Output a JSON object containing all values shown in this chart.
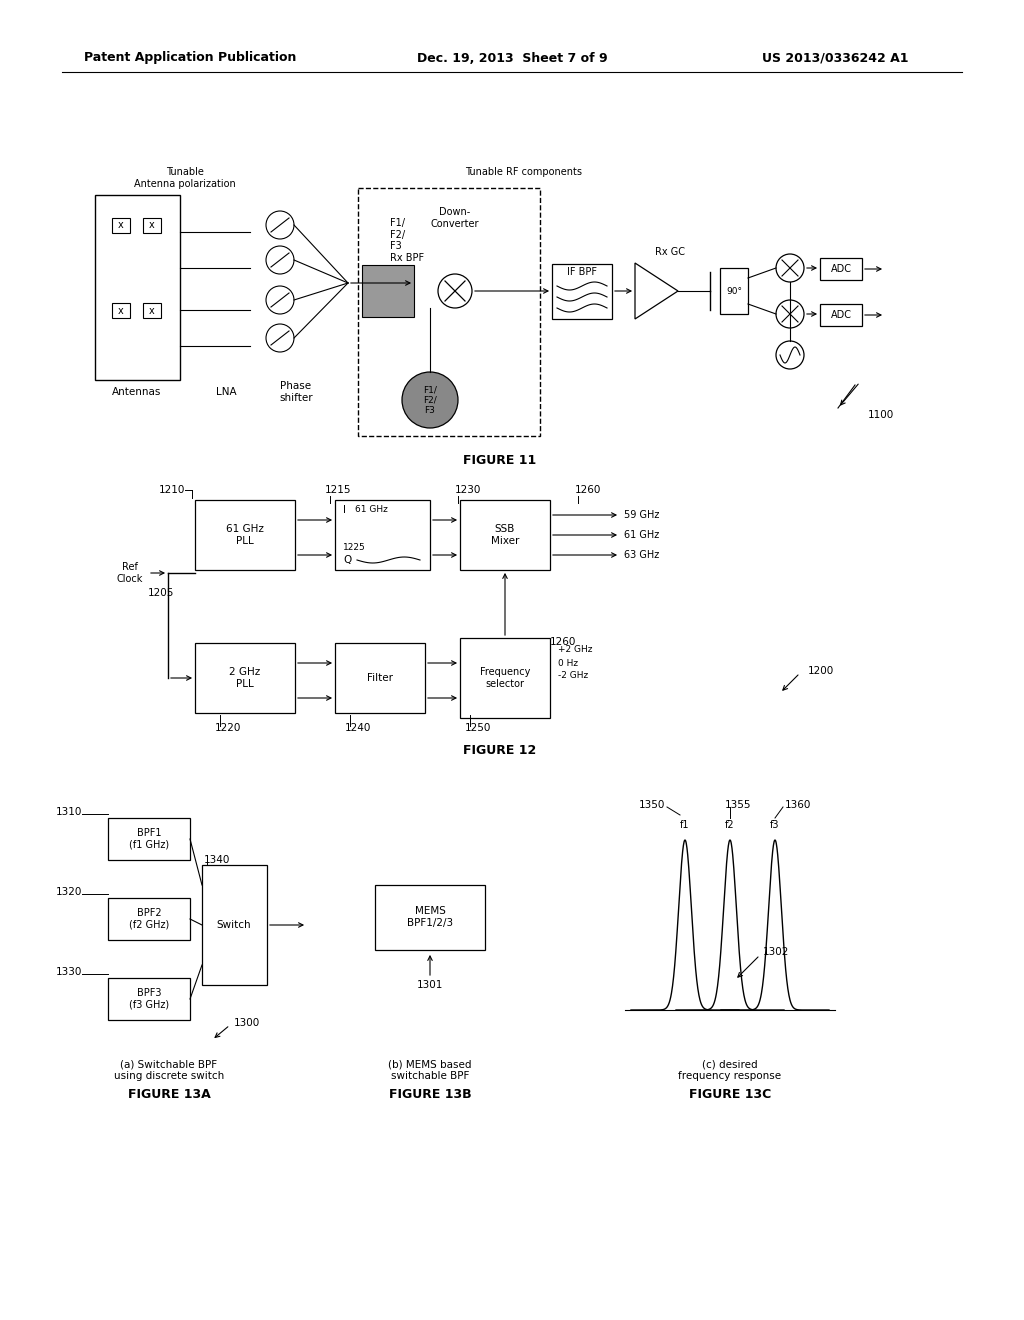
{
  "title_left": "Patent Application Publication",
  "title_center": "Dec. 19, 2013  Sheet 7 of 9",
  "title_right": "US 2013/0336242 A1",
  "fig11_label": "FIGURE 11",
  "fig12_label": "FIGURE 12",
  "fig13a_label": "FIGURE 13A",
  "fig13b_label": "FIGURE 13B",
  "fig13c_label": "FIGURE 13C",
  "fig13a_caption": "(a) Switchable BPF\nusing discrete switch",
  "fig13b_caption": "(b) MEMS based\nswitchable BPF",
  "fig13c_caption": "(c) desired\nfrequency response",
  "bg_color": "#ffffff",
  "line_color": "#000000"
}
